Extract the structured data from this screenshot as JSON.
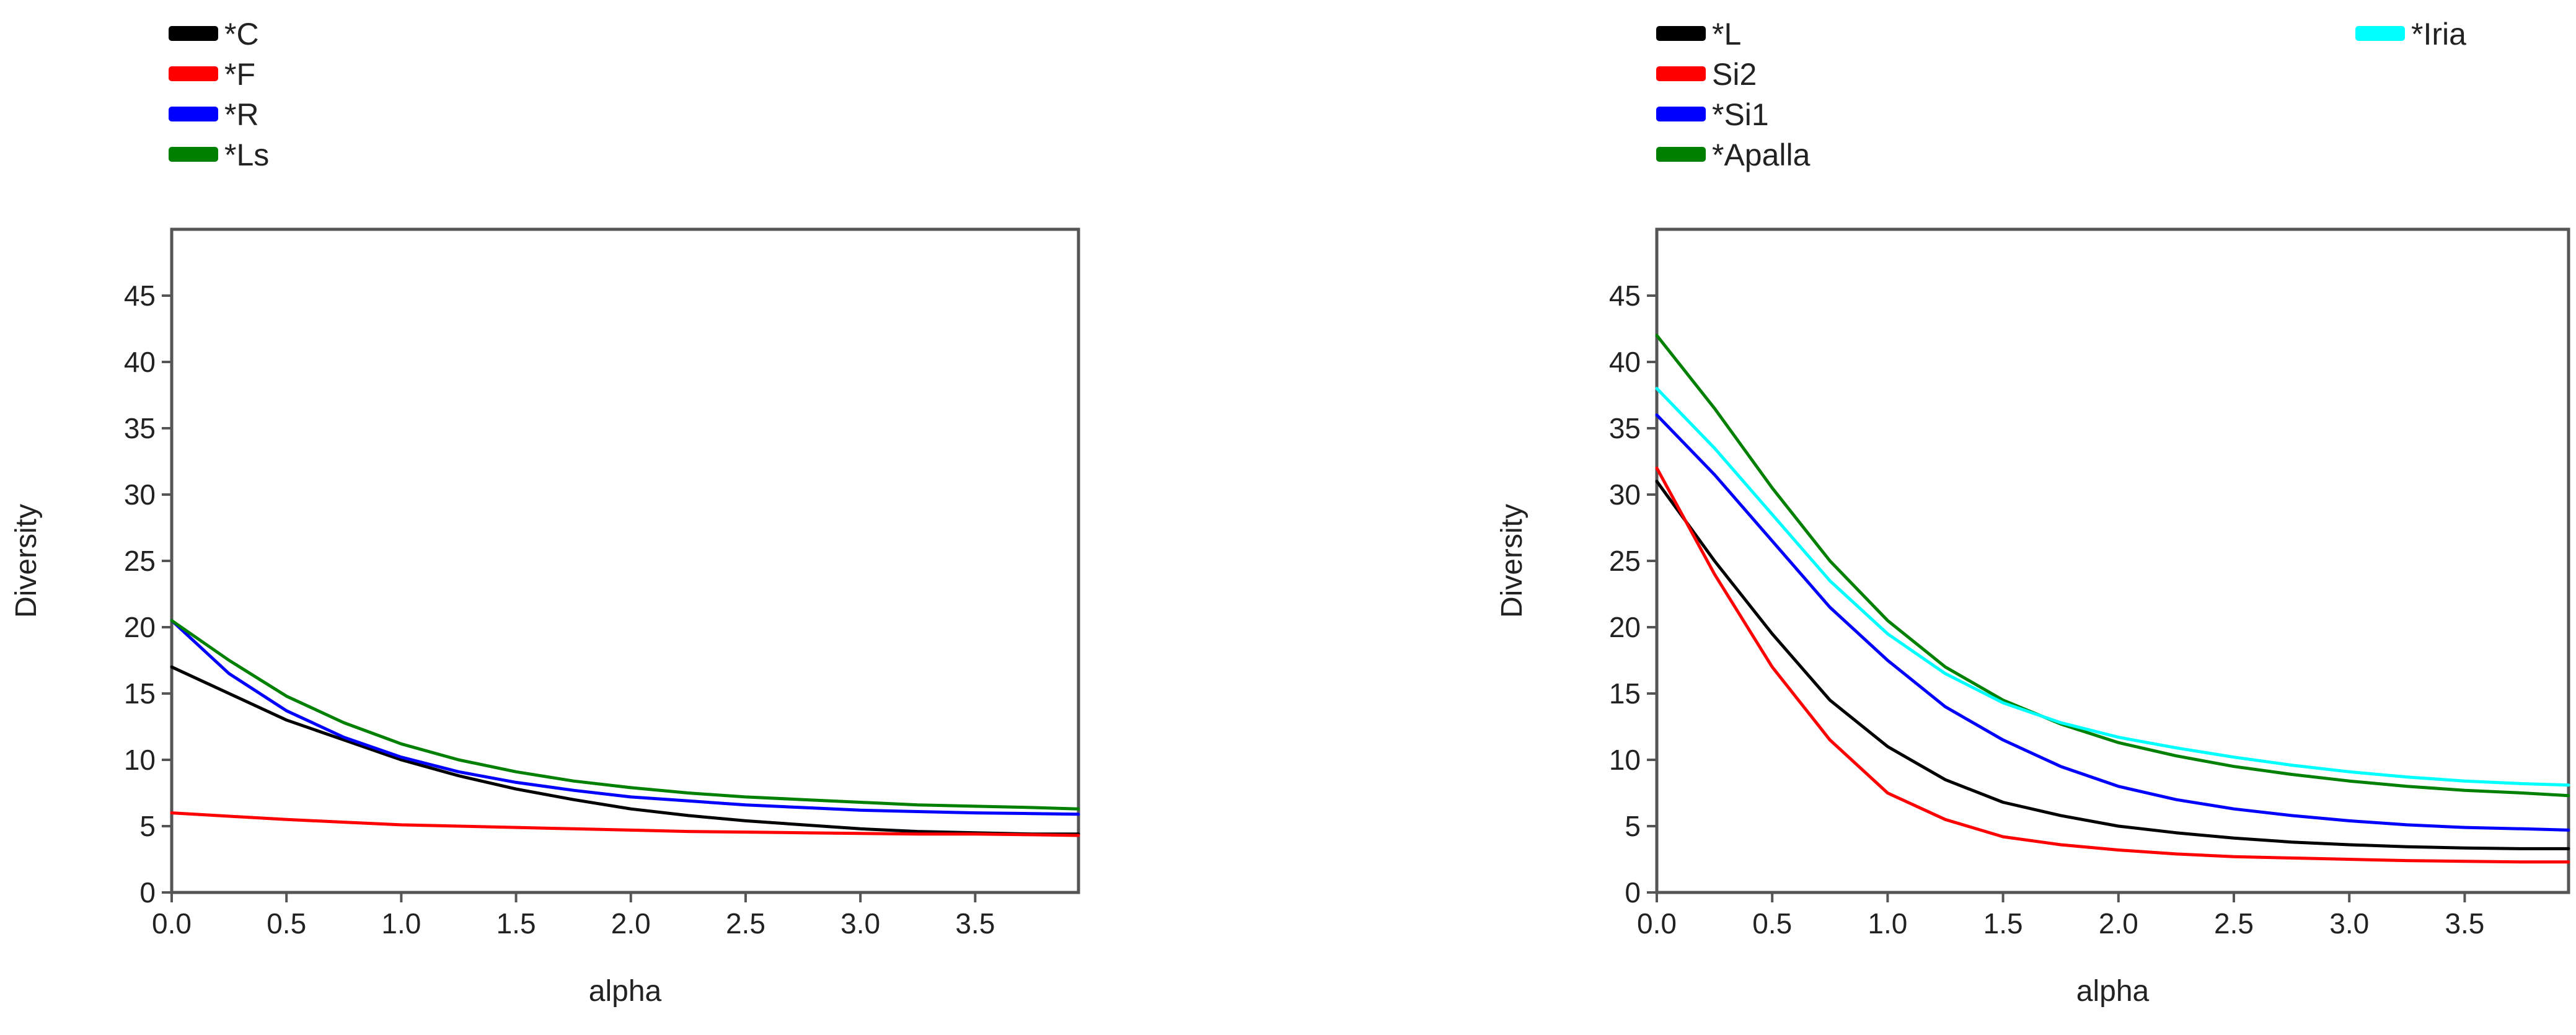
{
  "chart_data": [
    {
      "type": "line",
      "xlabel": "alpha",
      "ylabel": "Diversity",
      "xlim": [
        0,
        3.95
      ],
      "ylim": [
        0,
        50
      ],
      "xticks": [
        "0.0",
        "0.5",
        "1.0",
        "1.5",
        "2.0",
        "2.5",
        "3.0",
        "3.5"
      ],
      "yticks": [
        "0",
        "5",
        "10",
        "15",
        "20",
        "25",
        "30",
        "35",
        "40",
        "45"
      ],
      "grid": false,
      "legend_position": "top-left",
      "x": [
        0,
        0.25,
        0.5,
        0.75,
        1.0,
        1.25,
        1.5,
        1.75,
        2.0,
        2.25,
        2.5,
        2.75,
        3.0,
        3.25,
        3.5,
        3.75,
        3.95
      ],
      "series": [
        {
          "name": "*C",
          "color": "#000000",
          "values": [
            17.0,
            15.0,
            13.0,
            11.5,
            10.0,
            8.8,
            7.8,
            7.0,
            6.3,
            5.8,
            5.4,
            5.1,
            4.8,
            4.6,
            4.5,
            4.4,
            4.4
          ]
        },
        {
          "name": "*F",
          "color": "#ff0000",
          "values": [
            6.0,
            5.75,
            5.5,
            5.3,
            5.1,
            5.0,
            4.9,
            4.8,
            4.7,
            4.6,
            4.55,
            4.5,
            4.45,
            4.4,
            4.4,
            4.35,
            4.3
          ]
        },
        {
          "name": "*R",
          "color": "#0000ff",
          "values": [
            20.5,
            16.5,
            13.7,
            11.7,
            10.2,
            9.1,
            8.3,
            7.7,
            7.2,
            6.9,
            6.6,
            6.4,
            6.2,
            6.1,
            6.0,
            5.95,
            5.9
          ]
        },
        {
          "name": "*Ls",
          "color": "#008000",
          "values": [
            20.5,
            17.5,
            14.8,
            12.8,
            11.2,
            10.0,
            9.1,
            8.4,
            7.9,
            7.5,
            7.2,
            7.0,
            6.8,
            6.6,
            6.5,
            6.4,
            6.3
          ]
        }
      ]
    },
    {
      "type": "line",
      "xlabel": "alpha",
      "ylabel": "Diversity",
      "xlim": [
        0,
        3.95
      ],
      "ylim": [
        0,
        50
      ],
      "xticks": [
        "0.0",
        "0.5",
        "1.0",
        "1.5",
        "2.0",
        "2.5",
        "3.0",
        "3.5"
      ],
      "yticks": [
        "0",
        "5",
        "10",
        "15",
        "20",
        "25",
        "30",
        "35",
        "40",
        "45"
      ],
      "grid": false,
      "legend_position": "top",
      "x": [
        0,
        0.25,
        0.5,
        0.75,
        1.0,
        1.25,
        1.5,
        1.75,
        2.0,
        2.25,
        2.5,
        2.75,
        3.0,
        3.25,
        3.5,
        3.75,
        3.95
      ],
      "series": [
        {
          "name": "*L",
          "color": "#000000",
          "values": [
            31.0,
            25.0,
            19.5,
            14.5,
            11.0,
            8.5,
            6.8,
            5.8,
            5.0,
            4.5,
            4.1,
            3.8,
            3.6,
            3.45,
            3.35,
            3.3,
            3.3
          ]
        },
        {
          "name": "Si2",
          "color": "#ff0000",
          "values": [
            32.0,
            24.0,
            17.0,
            11.5,
            7.5,
            5.5,
            4.2,
            3.6,
            3.2,
            2.9,
            2.7,
            2.6,
            2.5,
            2.4,
            2.35,
            2.3,
            2.3
          ]
        },
        {
          "name": "*Si1",
          "color": "#0000ff",
          "values": [
            36.0,
            31.5,
            26.5,
            21.5,
            17.5,
            14.0,
            11.5,
            9.5,
            8.0,
            7.0,
            6.3,
            5.8,
            5.4,
            5.1,
            4.9,
            4.8,
            4.7
          ]
        },
        {
          "name": "*Apalla",
          "color": "#008000",
          "values": [
            42.0,
            36.5,
            30.5,
            25.0,
            20.5,
            17.0,
            14.5,
            12.7,
            11.3,
            10.3,
            9.5,
            8.9,
            8.4,
            8.0,
            7.7,
            7.5,
            7.3
          ]
        },
        {
          "name": "*Iria",
          "color": "#00ffff",
          "values": [
            38.0,
            33.5,
            28.5,
            23.5,
            19.5,
            16.5,
            14.3,
            12.8,
            11.7,
            10.9,
            10.2,
            9.6,
            9.1,
            8.7,
            8.4,
            8.2,
            8.1
          ]
        }
      ]
    }
  ]
}
